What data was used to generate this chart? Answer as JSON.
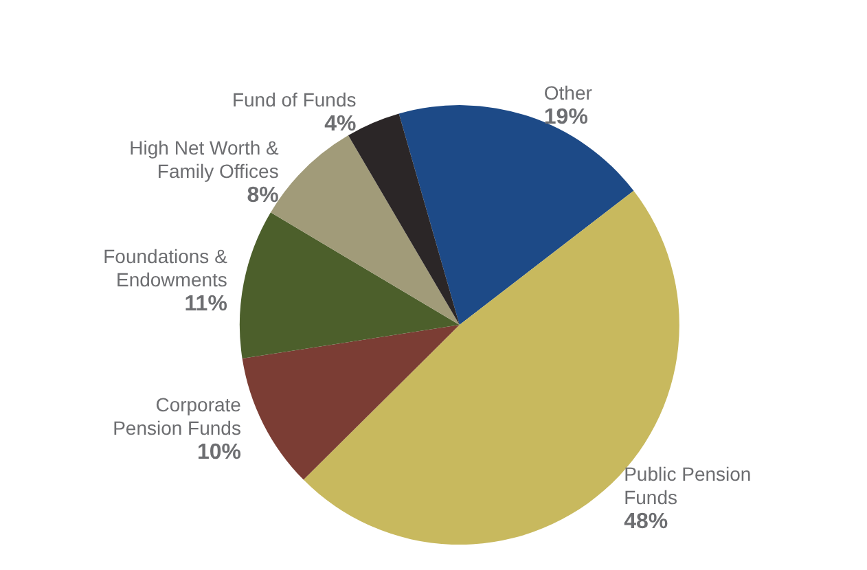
{
  "chart_data": {
    "type": "pie",
    "categories": [
      "Other",
      "Public Pension Funds",
      "Corporate Pension Funds",
      "Foundations & Endowments",
      "High Net Worth & Family Offices",
      "Fund of Funds"
    ],
    "values": [
      19,
      48,
      10,
      11,
      8,
      4
    ],
    "colors": [
      "#1d4a87",
      "#c8b95e",
      "#7b3d34",
      "#4c5f2b",
      "#a19b79",
      "#2b2627"
    ],
    "value_labels": [
      "19%",
      "48%",
      "10%",
      "11%",
      "8%",
      "4%"
    ],
    "legend": false
  }
}
